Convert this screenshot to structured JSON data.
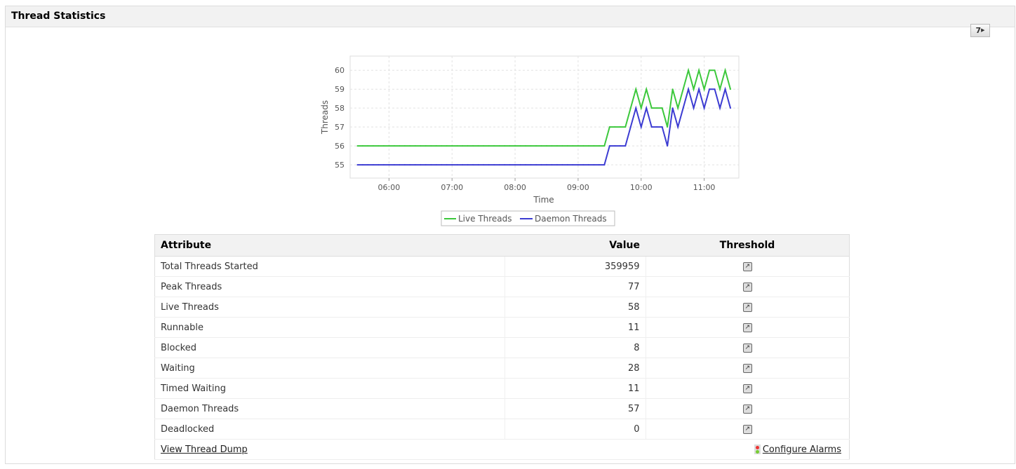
{
  "panel": {
    "title": "Thread Statistics",
    "period_button": "7"
  },
  "chart_data": {
    "type": "line",
    "xlabel": "Time",
    "ylabel": "Threads",
    "x_ticks": [
      "06:00",
      "07:00",
      "08:00",
      "09:00",
      "10:00",
      "11:00"
    ],
    "y_ticks": [
      55,
      56,
      57,
      58,
      59,
      60
    ],
    "ylim": [
      54.3,
      60.75
    ],
    "xlim": [
      "05:23",
      "11:33"
    ],
    "grid": true,
    "legend": "bottom",
    "x": [
      "05:30",
      "05:35",
      "05:40",
      "05:45",
      "05:50",
      "05:55",
      "06:00",
      "06:05",
      "06:10",
      "06:15",
      "06:20",
      "06:25",
      "06:30",
      "06:35",
      "06:40",
      "06:45",
      "06:50",
      "06:55",
      "07:00",
      "07:05",
      "07:10",
      "07:15",
      "07:20",
      "07:25",
      "07:30",
      "07:35",
      "07:40",
      "07:45",
      "07:50",
      "07:55",
      "08:00",
      "08:05",
      "08:10",
      "08:15",
      "08:20",
      "08:25",
      "08:30",
      "08:35",
      "08:40",
      "08:45",
      "08:50",
      "08:55",
      "09:00",
      "09:05",
      "09:10",
      "09:15",
      "09:20",
      "09:25",
      "09:30",
      "09:35",
      "09:40",
      "09:45",
      "09:50",
      "09:55",
      "10:00",
      "10:05",
      "10:10",
      "10:15",
      "10:20",
      "10:25",
      "10:30",
      "10:35",
      "10:40",
      "10:45",
      "10:50",
      "10:55",
      "11:00",
      "11:05",
      "11:10",
      "11:15",
      "11:20",
      "11:25"
    ],
    "series": [
      {
        "name": "Live Threads",
        "color": "#3cc83c",
        "values": [
          56,
          56,
          56,
          56,
          56,
          56,
          56,
          56,
          56,
          56,
          56,
          56,
          56,
          56,
          56,
          56,
          56,
          56,
          56,
          56,
          56,
          56,
          56,
          56,
          56,
          56,
          56,
          56,
          56,
          56,
          56,
          56,
          56,
          56,
          56,
          56,
          56,
          56,
          56,
          56,
          56,
          56,
          56,
          56,
          56,
          56,
          56,
          56,
          57,
          57,
          57,
          57,
          58,
          59,
          58,
          59,
          58,
          58,
          58,
          57,
          59,
          58,
          59,
          60,
          59,
          60,
          59,
          60,
          60,
          59,
          60,
          59
        ]
      },
      {
        "name": "Daemon Threads",
        "color": "#3c3cd2",
        "values": [
          55,
          55,
          55,
          55,
          55,
          55,
          55,
          55,
          55,
          55,
          55,
          55,
          55,
          55,
          55,
          55,
          55,
          55,
          55,
          55,
          55,
          55,
          55,
          55,
          55,
          55,
          55,
          55,
          55,
          55,
          55,
          55,
          55,
          55,
          55,
          55,
          55,
          55,
          55,
          55,
          55,
          55,
          55,
          55,
          55,
          55,
          55,
          55,
          56,
          56,
          56,
          56,
          57,
          58,
          57,
          58,
          57,
          57,
          57,
          56,
          58,
          57,
          58,
          59,
          58,
          59,
          58,
          59,
          59,
          58,
          59,
          58
        ]
      }
    ]
  },
  "table": {
    "headers": [
      "Attribute",
      "Value",
      "Threshold"
    ],
    "rows": [
      {
        "attribute": "Total Threads Started",
        "value": "359959"
      },
      {
        "attribute": "Peak Threads",
        "value": "77"
      },
      {
        "attribute": "Live Threads",
        "value": "58"
      },
      {
        "attribute": "Runnable",
        "value": "11"
      },
      {
        "attribute": "Blocked",
        "value": "8"
      },
      {
        "attribute": "Waiting",
        "value": "28"
      },
      {
        "attribute": "Timed Waiting",
        "value": "11"
      },
      {
        "attribute": "Daemon Threads",
        "value": "57"
      },
      {
        "attribute": "Deadlocked",
        "value": "0"
      }
    ],
    "footer": {
      "thread_dump": "View Thread Dump",
      "configure_alarms": "Configure Alarms"
    }
  }
}
